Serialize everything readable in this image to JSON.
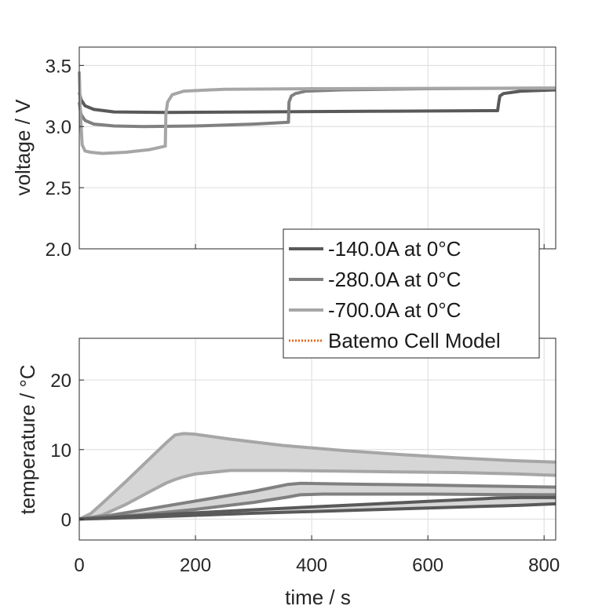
{
  "chart_data": [
    {
      "type": "line",
      "panel": "top",
      "xlabel": "",
      "ylabel": "voltage / V",
      "xlim": [
        0,
        820
      ],
      "ylim": [
        2.0,
        3.65
      ],
      "xticks": [
        0,
        200,
        400,
        600,
        800
      ],
      "yticks": [
        2.0,
        2.5,
        3.0,
        3.5
      ],
      "ytick_labels": [
        "2.0",
        "2.5",
        "3.0",
        "3.5"
      ],
      "grid": true,
      "series": [
        {
          "name": "-140.0A at 0°C",
          "color": "#595959",
          "x": [
            0,
            3,
            10,
            25,
            60,
            150,
            300,
            500,
            700,
            720,
            722,
            724,
            730,
            760,
            820
          ],
          "y": [
            3.28,
            3.22,
            3.17,
            3.14,
            3.12,
            3.115,
            3.12,
            3.125,
            3.13,
            3.13,
            3.2,
            3.25,
            3.27,
            3.29,
            3.3
          ]
        },
        {
          "name": "-280.0A at 0°C",
          "color": "#808080",
          "x": [
            0,
            3,
            10,
            25,
            60,
            110,
            200,
            300,
            360,
            361,
            365,
            372,
            390,
            450,
            600,
            820
          ],
          "y": [
            3.2,
            3.1,
            3.05,
            3.02,
            3.005,
            3.0,
            3.005,
            3.02,
            3.035,
            3.2,
            3.25,
            3.27,
            3.29,
            3.3,
            3.31,
            3.315
          ]
        },
        {
          "name": "-700.0A at 0°C",
          "color": "#a6a6a6",
          "x": [
            0,
            2,
            5,
            10,
            20,
            40,
            80,
            120,
            148,
            149,
            152,
            160,
            180,
            250,
            400,
            820
          ],
          "y": [
            3.45,
            3.1,
            2.85,
            2.8,
            2.79,
            2.78,
            2.79,
            2.81,
            2.84,
            3.1,
            3.2,
            3.26,
            3.29,
            3.305,
            3.31,
            3.315
          ]
        }
      ]
    },
    {
      "type": "area",
      "panel": "bottom",
      "xlabel": "time / s",
      "ylabel": "temperature / °C",
      "xlim": [
        0,
        820
      ],
      "ylim": [
        -3,
        26
      ],
      "xticks": [
        0,
        200,
        400,
        600,
        800
      ],
      "yticks": [
        0,
        10,
        20
      ],
      "xtick_labels": [
        "0",
        "200",
        "400",
        "600",
        "800"
      ],
      "ytick_labels": [
        "0",
        "10",
        "20"
      ],
      "grid": true,
      "series": [
        {
          "name": "-140.0A at 0°C",
          "color": "#595959",
          "x": [
            0,
            100,
            200,
            300,
            400,
            500,
            600,
            700,
            720,
            760,
            820
          ],
          "upper": [
            0,
            0.45,
            0.9,
            1.35,
            1.75,
            2.15,
            2.55,
            2.95,
            3.05,
            3.1,
            3.1
          ],
          "lower": [
            0,
            0.25,
            0.55,
            0.85,
            1.1,
            1.35,
            1.6,
            1.85,
            1.9,
            2.0,
            2.2
          ]
        },
        {
          "name": "-280.0A at 0°C",
          "color": "#808080",
          "x": [
            0,
            50,
            100,
            200,
            300,
            360,
            380,
            420,
            500,
            600,
            700,
            820
          ],
          "upper": [
            0,
            0.5,
            1.2,
            2.6,
            4.0,
            5.0,
            5.15,
            5.1,
            5.0,
            4.9,
            4.75,
            4.6
          ],
          "lower": [
            0,
            0.3,
            0.6,
            1.4,
            2.4,
            3.2,
            3.5,
            3.6,
            3.6,
            3.6,
            3.55,
            3.5
          ]
        },
        {
          "name": "-700.0A at 0°C",
          "color": "#a6a6a6",
          "x": [
            0,
            20,
            40,
            80,
            120,
            150,
            165,
            180,
            200,
            260,
            350,
            450,
            550,
            650,
            750,
            820
          ],
          "upper": [
            0,
            0.8,
            2.3,
            5.4,
            8.6,
            11.0,
            12.1,
            12.3,
            12.2,
            11.5,
            10.6,
            9.9,
            9.3,
            8.8,
            8.4,
            8.2
          ],
          "lower": [
            0,
            0.2,
            0.6,
            2.1,
            3.9,
            5.2,
            5.7,
            6.1,
            6.5,
            7.0,
            7.0,
            6.9,
            6.8,
            6.7,
            6.5,
            6.3
          ]
        },
        {
          "name": "Batemo Cell Model",
          "color": "#e8691d",
          "style": "dotted"
        }
      ]
    }
  ],
  "legend": {
    "position": "overlapping both panels, right",
    "entries": [
      {
        "label": "-140.0A at 0°C",
        "color": "#595959",
        "style": "solid"
      },
      {
        "label": "-280.0A at 0°C",
        "color": "#808080",
        "style": "solid"
      },
      {
        "label": "-700.0A at 0°C",
        "color": "#a6a6a6",
        "style": "solid"
      },
      {
        "label": "Batemo Cell Model",
        "color": "#e8691d",
        "style": "dotted"
      }
    ]
  }
}
